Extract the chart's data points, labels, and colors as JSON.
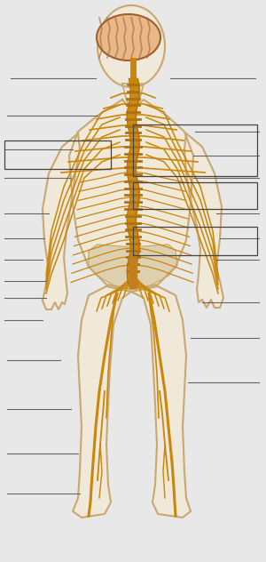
{
  "bg_color": "#e8e8e8",
  "body_fill": "#f0e8d8",
  "body_stroke": "#c8a870",
  "nerve_color": "#c8860a",
  "brain_fill": "#e8b888",
  "label_line_color": "#666666",
  "label_box_color": "#444444",
  "figsize": [
    3.0,
    6.32
  ],
  "dpi": 100
}
